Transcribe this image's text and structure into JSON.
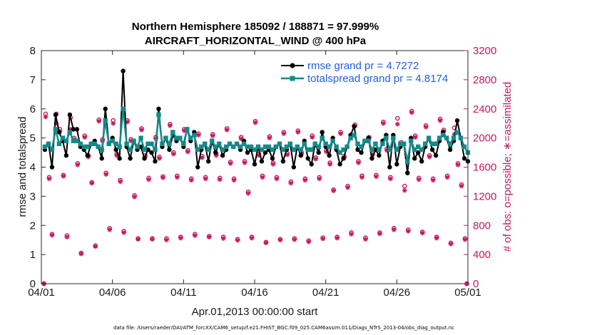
{
  "chart_data": {
    "type": "line",
    "title_line1": "Northern Hemisphere 185092 / 188871 = 97.999%",
    "title_line2": "AIRCRAFT_HORIZONTAL_WIND @ 400 hPa",
    "ylabel": "rmse and totalspread",
    "ylabel_right": "# of obs: o=possible; ∗=assimilated",
    "xlabel": "Apr.01,2013 00:00:00 start",
    "footnote": "data file: /Users/raeder/DAI/ATM_forcXX/CAM6_setup/f.e21.FHIST_BGC.f09_025.CAM6assim.011/Diags_NTrS_2013-04/obs_diag_output.nc",
    "xlim": [
      0,
      30
    ],
    "ylim": [
      0,
      8
    ],
    "ylim_right": [
      0,
      3200
    ],
    "x_ticks": [
      0,
      5,
      10,
      15,
      20,
      25,
      30
    ],
    "x_tick_labels": [
      "04/01",
      "04/06",
      "04/11",
      "04/16",
      "04/21",
      "04/26",
      "05/01"
    ],
    "y_ticks": [
      0,
      1,
      2,
      3,
      4,
      5,
      6,
      7,
      8
    ],
    "y_tick_labels": [
      "0",
      "1",
      "2",
      "3",
      "4",
      "5",
      "6",
      "7",
      "8"
    ],
    "y_right_ticks": [
      0,
      400,
      800,
      1200,
      1600,
      2000,
      2400,
      2800,
      3200
    ],
    "y_right_tick_labels": [
      "0",
      "400",
      "800",
      "1200",
      "1600",
      "2000",
      "2400",
      "2800",
      "3200"
    ],
    "colors": {
      "rmse": "#000000",
      "spread": "#138a8a",
      "obs": "#c8175d",
      "legend_text": "#1f5fe0"
    },
    "legend": [
      {
        "name": "rmse",
        "label": "rmse grand pr = 4.7272"
      },
      {
        "name": "spread",
        "label": "totalspread grand pr = 4.8174"
      }
    ],
    "time_step_days": 0.25,
    "x_start_day": 0.25,
    "series": [
      {
        "name": "rmse",
        "values": [
          4.6,
          4.8,
          4.0,
          5.8,
          5.2,
          4.9,
          4.4,
          5.8,
          5.3,
          5.3,
          4.7,
          4.6,
          4.4,
          4.8,
          4.9,
          4.7,
          4.3,
          6.0,
          4.8,
          5.0,
          4.6,
          4.3,
          7.3,
          4.7,
          4.3,
          4.9,
          4.6,
          4.7,
          4.3,
          4.6,
          4.5,
          4.2,
          6.0,
          4.7,
          5.0,
          4.6,
          5.1,
          4.9,
          5.0,
          4.7,
          5.3,
          4.9,
          5.2,
          4.0,
          4.6,
          4.8,
          4.2,
          4.9,
          4.5,
          4.8,
          4.4,
          4.6,
          4.8,
          4.7,
          4.8,
          4.6,
          4.9,
          4.5,
          4.6,
          4.1,
          4.7,
          4.2,
          4.5,
          4.6,
          4.3,
          4.7,
          4.8,
          4.2,
          4.6,
          4.8,
          4.0,
          4.7,
          4.4,
          4.9,
          4.3,
          4.1,
          4.8,
          4.5,
          5.2,
          4.7,
          4.4,
          5.0,
          4.6,
          4.1,
          4.3,
          4.7,
          5.1,
          5.4,
          4.6,
          4.5,
          4.9,
          5.0,
          4.3,
          4.6,
          4.4,
          4.9,
          5.1,
          4.0,
          5.1,
          4.1,
          4.7,
          4.8,
          3.8,
          5.0,
          4.3,
          4.5,
          4.2,
          4.7,
          5.0,
          4.6,
          4.4,
          4.9,
          5.2,
          5.0,
          4.6,
          4.9,
          5.6,
          5.0,
          4.3,
          4.2
        ]
      },
      {
        "name": "totalspread",
        "values": [
          4.7,
          4.8,
          4.6,
          5.3,
          4.8,
          5.0,
          4.9,
          5.2,
          4.9,
          4.9,
          4.8,
          4.7,
          4.7,
          4.8,
          4.8,
          4.7,
          4.6,
          5.6,
          4.8,
          4.9,
          4.8,
          4.7,
          6.0,
          4.8,
          4.6,
          4.9,
          4.7,
          5.0,
          4.6,
          4.8,
          4.8,
          4.6,
          5.8,
          4.8,
          5.0,
          4.8,
          5.2,
          5.0,
          5.0,
          4.8,
          5.3,
          5.0,
          5.1,
          4.6,
          4.7,
          4.8,
          4.6,
          4.9,
          4.7,
          4.8,
          4.6,
          4.7,
          4.8,
          4.7,
          4.8,
          4.7,
          4.8,
          4.7,
          4.7,
          4.6,
          4.7,
          4.6,
          4.7,
          4.7,
          4.6,
          4.7,
          4.8,
          4.6,
          4.7,
          4.8,
          4.6,
          4.7,
          4.6,
          4.8,
          4.6,
          4.6,
          4.8,
          4.7,
          5.0,
          4.8,
          4.7,
          4.9,
          4.7,
          4.5,
          4.6,
          4.7,
          5.0,
          5.1,
          4.8,
          4.7,
          4.9,
          4.9,
          4.6,
          4.8,
          4.6,
          4.8,
          5.0,
          4.6,
          5.0,
          4.6,
          4.8,
          4.8,
          4.2,
          4.9,
          4.6,
          4.7,
          4.6,
          4.8,
          5.0,
          4.8,
          4.8,
          5.0,
          5.1,
          5.0,
          4.8,
          5.0,
          5.2,
          5.0,
          4.7,
          4.5
        ]
      }
    ],
    "obs_points": [
      {
        "x": 0.18,
        "possible": 0,
        "assimilated": 0
      },
      {
        "x": 0.3,
        "possible": 2330,
        "assimilated": 2290
      },
      {
        "x": 0.55,
        "possible": 1460,
        "assimilated": 1440
      },
      {
        "x": 0.75,
        "possible": 680,
        "assimilated": 665
      },
      {
        "x": 1.05,
        "possible": 2330,
        "assimilated": 2200
      },
      {
        "x": 1.3,
        "possible": 2120,
        "assimilated": 2090
      },
      {
        "x": 1.55,
        "possible": 1490,
        "assimilated": 1475
      },
      {
        "x": 1.8,
        "possible": 660,
        "assimilated": 640
      },
      {
        "x": 2.05,
        "possible": 2280,
        "assimilated": 2120
      },
      {
        "x": 2.3,
        "possible": 2000,
        "assimilated": 1980
      },
      {
        "x": 2.55,
        "possible": 1650,
        "assimilated": 1630
      },
      {
        "x": 2.8,
        "possible": 420,
        "assimilated": 410
      },
      {
        "x": 3.05,
        "possible": 2030,
        "assimilated": 2010
      },
      {
        "x": 3.3,
        "possible": 1760,
        "assimilated": 1740
      },
      {
        "x": 3.55,
        "possible": 1390,
        "assimilated": 1380
      },
      {
        "x": 3.8,
        "possible": 520,
        "assimilated": 510
      },
      {
        "x": 4.05,
        "possible": 2250,
        "assimilated": 2230
      },
      {
        "x": 4.3,
        "possible": 1980,
        "assimilated": 1960
      },
      {
        "x": 4.55,
        "possible": 1520,
        "assimilated": 1500
      },
      {
        "x": 4.8,
        "possible": 760,
        "assimilated": 740
      },
      {
        "x": 5.05,
        "possible": 2240,
        "assimilated": 2200
      },
      {
        "x": 5.3,
        "possible": 1780,
        "assimilated": 1760
      },
      {
        "x": 5.55,
        "possible": 1420,
        "assimilated": 1400
      },
      {
        "x": 5.8,
        "possible": 720,
        "assimilated": 700
      },
      {
        "x": 6.05,
        "possible": 2240,
        "assimilated": 2220
      },
      {
        "x": 6.3,
        "possible": 1980,
        "assimilated": 1960
      },
      {
        "x": 6.55,
        "possible": 1210,
        "assimilated": 1190
      },
      {
        "x": 6.8,
        "possible": 620,
        "assimilated": 610
      },
      {
        "x": 7.05,
        "possible": 2130,
        "assimilated": 2110
      },
      {
        "x": 7.3,
        "possible": 1760,
        "assimilated": 1740
      },
      {
        "x": 7.55,
        "possible": 1450,
        "assimilated": 1430
      },
      {
        "x": 7.8,
        "possible": 620,
        "assimilated": 610
      },
      {
        "x": 8.05,
        "possible": 2010,
        "assimilated": 1990
      },
      {
        "x": 8.3,
        "possible": 1740,
        "assimilated": 1720
      },
      {
        "x": 8.55,
        "possible": 1470,
        "assimilated": 1455
      },
      {
        "x": 8.8,
        "possible": 620,
        "assimilated": 600
      },
      {
        "x": 9.05,
        "possible": 2190,
        "assimilated": 2170
      },
      {
        "x": 9.3,
        "possible": 1800,
        "assimilated": 1780
      },
      {
        "x": 9.55,
        "possible": 1480,
        "assimilated": 1460
      },
      {
        "x": 9.8,
        "possible": 640,
        "assimilated": 625
      },
      {
        "x": 10.05,
        "possible": 2120,
        "assimilated": 2100
      },
      {
        "x": 10.3,
        "possible": 1830,
        "assimilated": 1810
      },
      {
        "x": 10.55,
        "possible": 1440,
        "assimilated": 1420
      },
      {
        "x": 10.8,
        "possible": 680,
        "assimilated": 660
      },
      {
        "x": 11.05,
        "possible": 2060,
        "assimilated": 2040
      },
      {
        "x": 11.3,
        "possible": 1750,
        "assimilated": 1730
      },
      {
        "x": 11.55,
        "possible": 1460,
        "assimilated": 1440
      },
      {
        "x": 11.8,
        "possible": 650,
        "assimilated": 640
      },
      {
        "x": 12.05,
        "possible": 2050,
        "assimilated": 2030
      },
      {
        "x": 12.3,
        "possible": 1780,
        "assimilated": 1760
      },
      {
        "x": 12.55,
        "possible": 1450,
        "assimilated": 1430
      },
      {
        "x": 12.8,
        "possible": 640,
        "assimilated": 620
      },
      {
        "x": 13.05,
        "possible": 2130,
        "assimilated": 2110
      },
      {
        "x": 13.3,
        "possible": 1670,
        "assimilated": 1650
      },
      {
        "x": 13.55,
        "possible": 1440,
        "assimilated": 1420
      },
      {
        "x": 13.8,
        "possible": 610,
        "assimilated": 595
      },
      {
        "x": 14.05,
        "possible": 2010,
        "assimilated": 1990
      },
      {
        "x": 14.3,
        "possible": 1680,
        "assimilated": 1660
      },
      {
        "x": 14.55,
        "possible": 1260,
        "assimilated": 1240
      },
      {
        "x": 14.8,
        "possible": 640,
        "assimilated": 625
      },
      {
        "x": 15.05,
        "possible": 2230,
        "assimilated": 2210
      },
      {
        "x": 15.3,
        "possible": 1780,
        "assimilated": 1760
      },
      {
        "x": 15.55,
        "possible": 1480,
        "assimilated": 1460
      },
      {
        "x": 15.8,
        "possible": 570,
        "assimilated": 560
      },
      {
        "x": 16.05,
        "possible": 2020,
        "assimilated": 2000
      },
      {
        "x": 16.3,
        "possible": 1660,
        "assimilated": 1640
      },
      {
        "x": 16.55,
        "possible": 1460,
        "assimilated": 1440
      },
      {
        "x": 16.8,
        "possible": 610,
        "assimilated": 600
      },
      {
        "x": 17.05,
        "possible": 2080,
        "assimilated": 2060
      },
      {
        "x": 17.3,
        "possible": 1790,
        "assimilated": 1770
      },
      {
        "x": 17.55,
        "possible": 1400,
        "assimilated": 1380
      },
      {
        "x": 17.8,
        "possible": 620,
        "assimilated": 605
      },
      {
        "x": 18.05,
        "possible": 2100,
        "assimilated": 2080
      },
      {
        "x": 18.3,
        "possible": 1800,
        "assimilated": 1780
      },
      {
        "x": 18.55,
        "possible": 1440,
        "assimilated": 1420
      },
      {
        "x": 18.8,
        "possible": 590,
        "assimilated": 575
      },
      {
        "x": 19.05,
        "possible": 2030,
        "assimilated": 2010
      },
      {
        "x": 19.3,
        "possible": 1730,
        "assimilated": 1710
      },
      {
        "x": 19.55,
        "possible": 1460,
        "assimilated": 1440
      },
      {
        "x": 19.8,
        "possible": 630,
        "assimilated": 615
      },
      {
        "x": 20.05,
        "possible": 1830,
        "assimilated": 1810
      },
      {
        "x": 20.3,
        "possible": 1660,
        "assimilated": 1640
      },
      {
        "x": 20.55,
        "possible": 1290,
        "assimilated": 1275
      },
      {
        "x": 20.8,
        "possible": 640,
        "assimilated": 625
      },
      {
        "x": 21.05,
        "possible": 2080,
        "assimilated": 2060
      },
      {
        "x": 21.3,
        "possible": 1750,
        "assimilated": 1730
      },
      {
        "x": 21.55,
        "possible": 1340,
        "assimilated": 1320
      },
      {
        "x": 21.8,
        "possible": 700,
        "assimilated": 680
      },
      {
        "x": 22.05,
        "possible": 2180,
        "assimilated": 2160
      },
      {
        "x": 22.3,
        "possible": 1680,
        "assimilated": 1660
      },
      {
        "x": 22.55,
        "possible": 1480,
        "assimilated": 1460
      },
      {
        "x": 22.8,
        "possible": 630,
        "assimilated": 610
      },
      {
        "x": 23.05,
        "possible": 2010,
        "assimilated": 1990
      },
      {
        "x": 23.3,
        "possible": 1790,
        "assimilated": 1770
      },
      {
        "x": 23.55,
        "possible": 1490,
        "assimilated": 1470
      },
      {
        "x": 23.8,
        "possible": 700,
        "assimilated": 685
      },
      {
        "x": 24.05,
        "possible": 2220,
        "assimilated": 2200
      },
      {
        "x": 24.3,
        "possible": 1850,
        "assimilated": 1830
      },
      {
        "x": 24.55,
        "possible": 1460,
        "assimilated": 1440
      },
      {
        "x": 24.8,
        "possible": 760,
        "assimilated": 740
      },
      {
        "x": 25.05,
        "possible": 2270,
        "assimilated": 2190
      },
      {
        "x": 25.3,
        "possible": 1940,
        "assimilated": 1920
      },
      {
        "x": 25.55,
        "possible": 1340,
        "assimilated": 1280
      },
      {
        "x": 25.8,
        "possible": 740,
        "assimilated": 720
      },
      {
        "x": 26.05,
        "possible": 2370,
        "assimilated": 2350
      },
      {
        "x": 26.3,
        "possible": 2030,
        "assimilated": 2010
      },
      {
        "x": 26.55,
        "possible": 1450,
        "assimilated": 1430
      },
      {
        "x": 26.8,
        "possible": 710,
        "assimilated": 695
      },
      {
        "x": 27.05,
        "possible": 2170,
        "assimilated": 2150
      },
      {
        "x": 27.3,
        "possible": 1760,
        "assimilated": 1740
      },
      {
        "x": 27.55,
        "possible": 1440,
        "assimilated": 1420
      },
      {
        "x": 27.8,
        "possible": 640,
        "assimilated": 625
      },
      {
        "x": 28.05,
        "possible": 2260,
        "assimilated": 2240
      },
      {
        "x": 28.3,
        "possible": 2110,
        "assimilated": 2090
      },
      {
        "x": 28.55,
        "possible": 1480,
        "assimilated": 1460
      },
      {
        "x": 28.8,
        "possible": 560,
        "assimilated": 545
      },
      {
        "x": 29.05,
        "possible": 2140,
        "assimilated": 2050
      },
      {
        "x": 29.3,
        "possible": 1650,
        "assimilated": 1630
      },
      {
        "x": 29.55,
        "possible": 1360,
        "assimilated": 1340
      },
      {
        "x": 29.8,
        "possible": 620,
        "assimilated": 605
      },
      {
        "x": 29.92,
        "possible": 0,
        "assimilated": 0
      }
    ]
  }
}
